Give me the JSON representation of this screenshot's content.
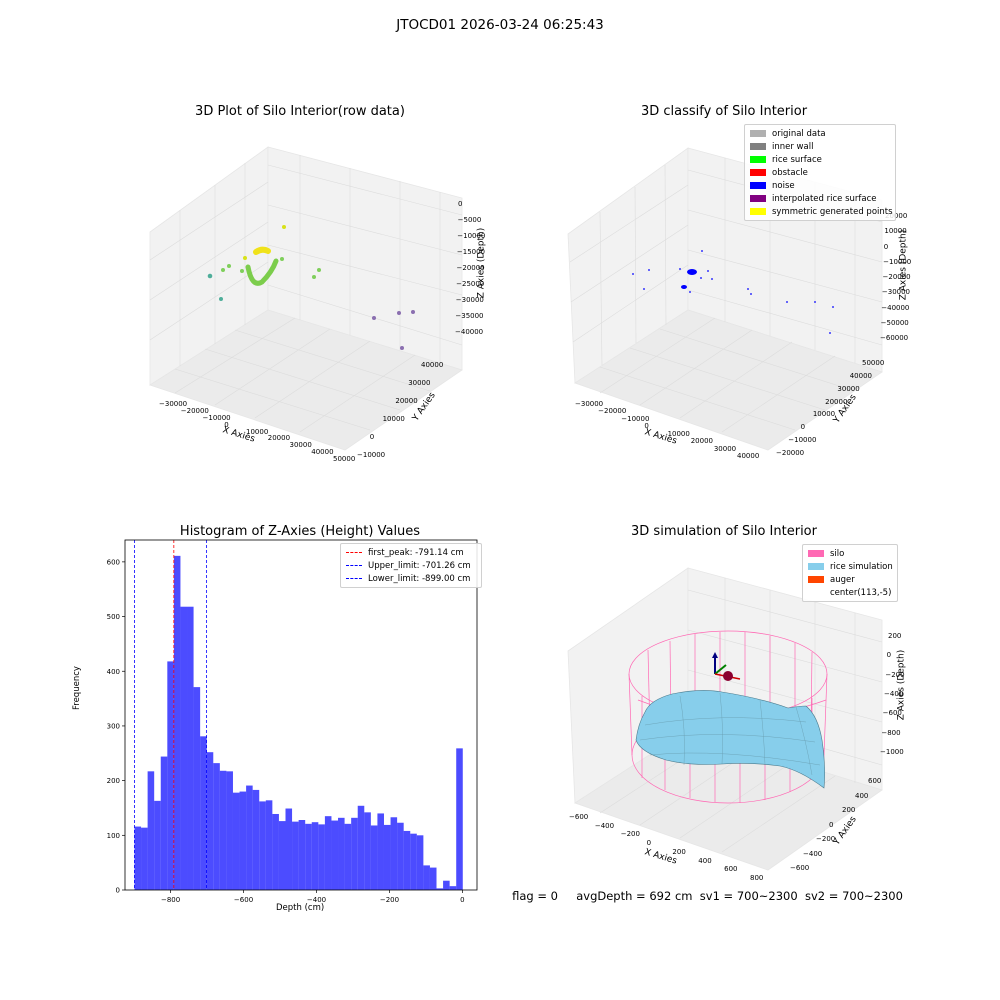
{
  "suptitle": "JTOCD01 2026-03-24 06:25:43",
  "panels": {
    "raw": {
      "title": "3D Plot of Silo Interior(row data)",
      "xlabel": "X Axies",
      "ylabel": "Y Axies",
      "zlabel": "Z Axies (Depth)",
      "xticks": [
        "−30000",
        "−20000",
        "−10000",
        "0",
        "10000",
        "20000",
        "30000",
        "40000",
        "50000"
      ],
      "yticks": [
        "−10000",
        "0",
        "10000",
        "20000",
        "30000",
        "40000"
      ],
      "zticks": [
        "0",
        "−5000",
        "−10000",
        "−15000",
        "−20000",
        "−25000",
        "−30000",
        "−35000",
        "−40000"
      ]
    },
    "classify": {
      "title": "3D classify of Silo Interior",
      "xlabel": "X Axies",
      "ylabel": "Y Axies",
      "zlabel": "Z Axies (Depth)",
      "xticks": [
        "−30000",
        "−20000",
        "−10000",
        "0",
        "10000",
        "20000",
        "30000",
        "40000"
      ],
      "yticks": [
        "−20000",
        "−10000",
        "0",
        "10000",
        "20000",
        "30000",
        "40000",
        "50000"
      ],
      "zticks": [
        "20000",
        "10000",
        "0",
        "−10000",
        "−20000",
        "−30000",
        "−40000",
        "−50000",
        "−60000"
      ],
      "legend": [
        {
          "label": "original data",
          "color": "#b0b0b0"
        },
        {
          "label": "inner wall",
          "color": "#808080"
        },
        {
          "label": "rice surface",
          "color": "#00ff00"
        },
        {
          "label": "obstacle",
          "color": "#ff0000"
        },
        {
          "label": "noise",
          "color": "#0000ff"
        },
        {
          "label": "interpolated rice surface",
          "color": "#800080"
        },
        {
          "label": "symmetric generated points",
          "color": "#ffff00"
        }
      ]
    },
    "sim": {
      "title": "3D simulation of Silo Interior",
      "xlabel": "X Axies",
      "ylabel": "Y Axies",
      "zlabel": "Z Axies (Depth)",
      "xticks": [
        "−600",
        "−400",
        "−200",
        "0",
        "200",
        "400",
        "600",
        "800"
      ],
      "yticks": [
        "−600",
        "−400",
        "−200",
        "0",
        "200",
        "400",
        "600"
      ],
      "zticks": [
        "200",
        "0",
        "−200",
        "−400",
        "−600",
        "−800",
        "−1000"
      ],
      "legend": [
        {
          "label": "silo",
          "color": "#ff69b4"
        },
        {
          "label": "rice simulation",
          "color": "#87ceeb"
        },
        {
          "label": "auger",
          "color": "#ff4500"
        },
        {
          "label": "center(113,-5)",
          "color": "#ffffff"
        }
      ]
    },
    "hist_title": "Histogram of Z-Axies (Height) Values"
  },
  "chart_data": {
    "type": "bar",
    "title": "Histogram of Z-Axies (Height) Values",
    "xlabel": "Depth (cm)",
    "ylabel": "Frequency",
    "xlim": [
      -925,
      40
    ],
    "ylim": [
      0,
      640
    ],
    "bar_color": "#0000ff",
    "xticks": [
      -800,
      -600,
      -400,
      -200,
      0
    ],
    "yticks": [
      0,
      100,
      200,
      300,
      400,
      500,
      600
    ],
    "bin_edges": [
      -899.0,
      -881.0,
      -863.0,
      -845.0,
      -827.0,
      -809.0,
      -791.0,
      -773.0,
      -755.0,
      -737.0,
      -719.0,
      -701.0,
      -683.0,
      -665.0,
      -647.0,
      -629.0,
      -611.0,
      -593.0,
      -575.0,
      -557.0,
      -539.0,
      -521.0,
      -503.0,
      -485.0,
      -467.0,
      -449.0,
      -431.0,
      -413.0,
      -395.0,
      -377.0,
      -359.0,
      -341.0,
      -323.0,
      -305.0,
      -287.0,
      -269.0,
      -251.0,
      -233.0,
      -215.0,
      -197.0,
      -179.0,
      -161.0,
      -143.0,
      -125.0,
      -107.0,
      -89.0,
      -71.0,
      -53.0,
      -35.0,
      -17.0,
      1.0
    ],
    "values": [
      116,
      114,
      217,
      163,
      244,
      418,
      611,
      518,
      518,
      371,
      281,
      252,
      232,
      218,
      217,
      178,
      180,
      191,
      183,
      162,
      164,
      139,
      126,
      149,
      125,
      128,
      121,
      124,
      120,
      135,
      127,
      132,
      121,
      132,
      154,
      142,
      118,
      140,
      119,
      133,
      123,
      108,
      103,
      100,
      45,
      41,
      3,
      17,
      7,
      259
    ],
    "vlines": [
      {
        "label": "first_peak: -791.14 cm",
        "x": -791.14,
        "color": "#ff0000"
      },
      {
        "label": "Upper_limit: -701.26 cm",
        "x": -701.26,
        "color": "#0000ff"
      },
      {
        "label": "Lower_limit: -899.00 cm",
        "x": -899.0,
        "color": "#0000ff"
      }
    ]
  },
  "status": "flag = 0     avgDepth = 692 cm  sv1 = 700~2300  sv2 = 700~2300"
}
